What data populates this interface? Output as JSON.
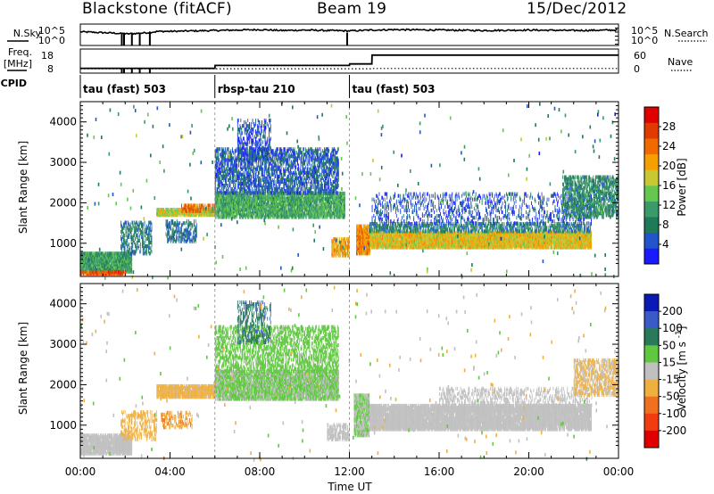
{
  "header": {
    "station": "Blackstone (fitACF)",
    "beam": "Beam 19",
    "date": "15/Dec/2012"
  },
  "side_labels": {
    "nsky": "N.Sky",
    "nsearch": "N.Search",
    "freq_line1": "Freq.",
    "freq_line2": "[MHz]",
    "nave": "Nave",
    "cpid": "CPID"
  },
  "noise_axis": {
    "left_top": "10^5",
    "left_bottom": "10^0",
    "right_top": "10^5",
    "right_bottom": "10^0"
  },
  "freq_axis": {
    "left_top": "18",
    "left_bottom": "8",
    "right_top": "60",
    "right_bottom": "0"
  },
  "cpid_segments": [
    {
      "label": "tau (fast) 503",
      "start_hour": 0,
      "end_hour": 6
    },
    {
      "label": "rbsp-tau 210",
      "start_hour": 6,
      "end_hour": 12
    },
    {
      "label": "tau (fast) 503",
      "start_hour": 12,
      "end_hour": 24
    }
  ],
  "time_axis": {
    "label": "Time UT",
    "ticks": [
      "00:00",
      "04:00",
      "08:00",
      "12:00",
      "16:00",
      "20:00",
      "00:00"
    ]
  },
  "range_axis": {
    "label": "Slant Range [km]",
    "ticks": [
      1000,
      2000,
      3000,
      4000
    ],
    "range": [
      180,
      4500
    ]
  },
  "power_colorbar": {
    "label": "Power [dB]",
    "ticks": [
      "4",
      "8",
      "12",
      "16",
      "20",
      "24",
      "28"
    ],
    "range": [
      0,
      30
    ],
    "colors": [
      "#1a1aff",
      "#2255cc",
      "#1f7a5a",
      "#3a9a6a",
      "#64c850",
      "#c8c832",
      "#f5a000",
      "#f06a00",
      "#e03a00",
      "#e00000"
    ]
  },
  "velocity_colorbar": {
    "label": "Velocity [m s^-1]",
    "ticks": [
      "200",
      "100",
      "50",
      "15",
      "-15",
      "-50",
      "-100",
      "-200"
    ],
    "range": [
      -250,
      250
    ],
    "colors": [
      "#0a1ab4",
      "#3a5ac8",
      "#2a7a5a",
      "#60c840",
      "#c0c0c0",
      "#f0b040",
      "#f07020",
      "#f03c10",
      "#e00000"
    ]
  },
  "chart_data": [
    {
      "type": "line",
      "title": "N.Sky / N.Search noise",
      "x_unit": "hours UT",
      "x": [
        0,
        0.5,
        1,
        1.5,
        2,
        2.5,
        3,
        3.5,
        4,
        5,
        6,
        7,
        8,
        9,
        10,
        11,
        12,
        13,
        14,
        16,
        18,
        20,
        22,
        24
      ],
      "series": [
        {
          "name": "N.Sky",
          "values": [
            3.2,
            3.1,
            3.0,
            2.9,
            2.7,
            2.8,
            3.0,
            3.3,
            3.3,
            3.4,
            3.5,
            3.6,
            3.7,
            3.5,
            3.6,
            3.5,
            3.4,
            3.6,
            3.7,
            3.6,
            3.5,
            3.6,
            3.5,
            3.6
          ]
        }
      ],
      "ylim": [
        0,
        5
      ]
    },
    {
      "type": "line",
      "title": "Frequency / Nave",
      "x": [
        0,
        6,
        6.01,
        12,
        12.01,
        13,
        13.01,
        24
      ],
      "series": [
        {
          "name": "Freq. [MHz]",
          "values": [
            10,
            10,
            11.2,
            11.2,
            11.8,
            11.8,
            15.5,
            15.5
          ]
        },
        {
          "name": "Nave",
          "values": [
            3,
            3,
            3,
            3,
            3,
            3,
            4,
            4
          ]
        }
      ]
    },
    {
      "type": "heatmap",
      "title": "Power",
      "xlabel": "Time UT",
      "ylabel": "Slant Range [km]",
      "xlim": [
        0,
        24
      ],
      "ylim": [
        180,
        4500
      ],
      "colorbar_label": "Power [dB]",
      "regions": [
        {
          "t0": 0,
          "t1": 2.3,
          "r0": 250,
          "r1": 720,
          "power": 10,
          "density": 0.95
        },
        {
          "t0": 0,
          "t1": 2.0,
          "r0": 200,
          "r1": 260,
          "power": 25,
          "density": 0.9
        },
        {
          "t0": 1.8,
          "t1": 3.2,
          "r0": 700,
          "r1": 1500,
          "power": 6,
          "density": 0.45
        },
        {
          "t0": 3.4,
          "t1": 6.0,
          "r0": 1650,
          "r1": 1800,
          "power": 16,
          "density": 0.95
        },
        {
          "t0": 4.5,
          "t1": 6.0,
          "r0": 1750,
          "r1": 1900,
          "power": 24,
          "density": 0.6
        },
        {
          "t0": 6.0,
          "t1": 11.8,
          "r0": 1600,
          "r1": 2200,
          "power": 11,
          "density": 0.85
        },
        {
          "t0": 6.0,
          "t1": 11.5,
          "r0": 2200,
          "r1": 3300,
          "power": 4,
          "density": 0.5
        },
        {
          "t0": 7.0,
          "t1": 8.5,
          "r0": 3000,
          "r1": 4000,
          "power": 3,
          "density": 0.35
        },
        {
          "t0": 3.8,
          "t1": 5.2,
          "r0": 1000,
          "r1": 1500,
          "power": 5,
          "density": 0.4
        },
        {
          "t0": 11.2,
          "t1": 12.0,
          "r0": 650,
          "r1": 1100,
          "power": 20,
          "density": 0.7
        },
        {
          "t0": 12.3,
          "t1": 12.9,
          "r0": 700,
          "r1": 1400,
          "power": 22,
          "density": 0.9
        },
        {
          "t0": 12.9,
          "t1": 22.8,
          "r0": 850,
          "r1": 1250,
          "power": 18,
          "density": 0.95
        },
        {
          "t0": 12.9,
          "t1": 22.8,
          "r0": 1250,
          "r1": 1450,
          "power": 7,
          "density": 0.55
        },
        {
          "t0": 13.0,
          "t1": 22.8,
          "r0": 1450,
          "r1": 2200,
          "power": 3,
          "density": 0.2
        },
        {
          "t0": 21.5,
          "t1": 24,
          "r0": 1600,
          "r1": 2600,
          "power": 8,
          "density": 0.55
        }
      ]
    },
    {
      "type": "heatmap",
      "title": "Velocity",
      "xlabel": "Time UT",
      "ylabel": "Slant Range [km]",
      "xlim": [
        0,
        24
      ],
      "ylim": [
        180,
        4500
      ],
      "colorbar_label": "Velocity [m s^-1]",
      "regions": [
        {
          "t0": 0,
          "t1": 2.3,
          "r0": 250,
          "r1": 720,
          "velocity": 0,
          "density": 0.9
        },
        {
          "t0": 1.8,
          "t1": 3.4,
          "r0": 600,
          "r1": 1300,
          "velocity": -60,
          "density": 0.35
        },
        {
          "t0": 3.4,
          "t1": 6.0,
          "r0": 1650,
          "r1": 1950,
          "velocity": -55,
          "density": 0.9
        },
        {
          "t0": 3.6,
          "t1": 5.0,
          "r0": 900,
          "r1": 1300,
          "velocity": -80,
          "density": 0.35
        },
        {
          "t0": 6.0,
          "t1": 11.5,
          "r0": 1600,
          "r1": 2300,
          "velocity": 40,
          "density": 0.85
        },
        {
          "t0": 6.0,
          "t1": 11.5,
          "r0": 2300,
          "r1": 3400,
          "velocity": 60,
          "density": 0.4
        },
        {
          "t0": 7.0,
          "t1": 8.5,
          "r0": 3000,
          "r1": 4000,
          "velocity": 140,
          "density": 0.3
        },
        {
          "t0": 11.0,
          "t1": 12.0,
          "r0": 600,
          "r1": 1000,
          "velocity": 0,
          "density": 0.6
        },
        {
          "t0": 12.2,
          "t1": 12.9,
          "r0": 700,
          "r1": 1700,
          "velocity": 30,
          "density": 0.85
        },
        {
          "t0": 12.9,
          "t1": 22.8,
          "r0": 850,
          "r1": 1450,
          "velocity": 0,
          "density": 0.9
        },
        {
          "t0": 16.0,
          "t1": 22.8,
          "r0": 1450,
          "r1": 1900,
          "velocity": 0,
          "density": 0.3
        },
        {
          "t0": 22.0,
          "t1": 24,
          "r0": 1700,
          "r1": 2600,
          "velocity": -40,
          "density": 0.5
        }
      ]
    }
  ]
}
